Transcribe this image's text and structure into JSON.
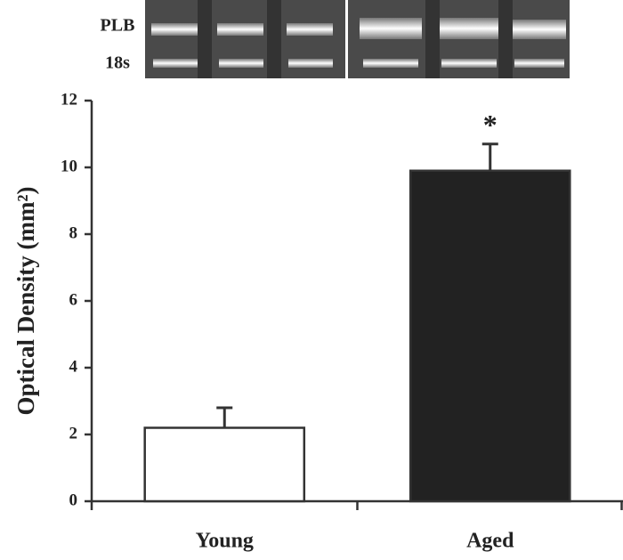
{
  "chart_data": {
    "type": "bar",
    "blot_labels": [
      "PLB",
      "18s"
    ],
    "ylabel": "Optical Density (mm²)",
    "categories": [
      "Young",
      "Aged"
    ],
    "values": [
      2.2,
      9.9
    ],
    "errors": [
      0.6,
      0.8
    ],
    "colors": [
      "#ffffff",
      "#222222"
    ],
    "annotation": "*",
    "ylim": [
      0,
      12
    ],
    "yticks": [
      0,
      2,
      4,
      6,
      8,
      10,
      12
    ]
  }
}
